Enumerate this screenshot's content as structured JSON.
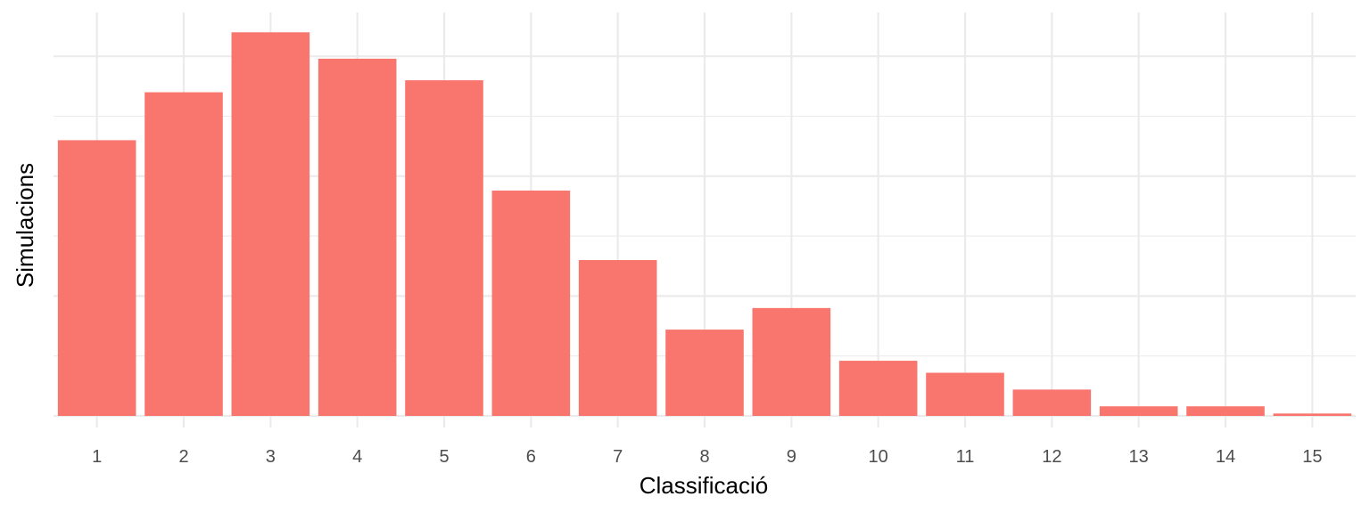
{
  "chart_data": {
    "type": "bar",
    "categories": [
      "1",
      "2",
      "3",
      "4",
      "5",
      "6",
      "7",
      "8",
      "9",
      "10",
      "11",
      "12",
      "13",
      "14",
      "15"
    ],
    "values": [
      115,
      135,
      160,
      149,
      140,
      94,
      65,
      36,
      45,
      23,
      18,
      11,
      4,
      4,
      1
    ],
    "xlabel": "Classificació",
    "ylabel": "Simulacions",
    "ylim": [
      0,
      168
    ],
    "y_tick_labels_shown": false,
    "grid": true,
    "bar_color": "#F8766D",
    "grid_color": "#EBEBEB"
  }
}
